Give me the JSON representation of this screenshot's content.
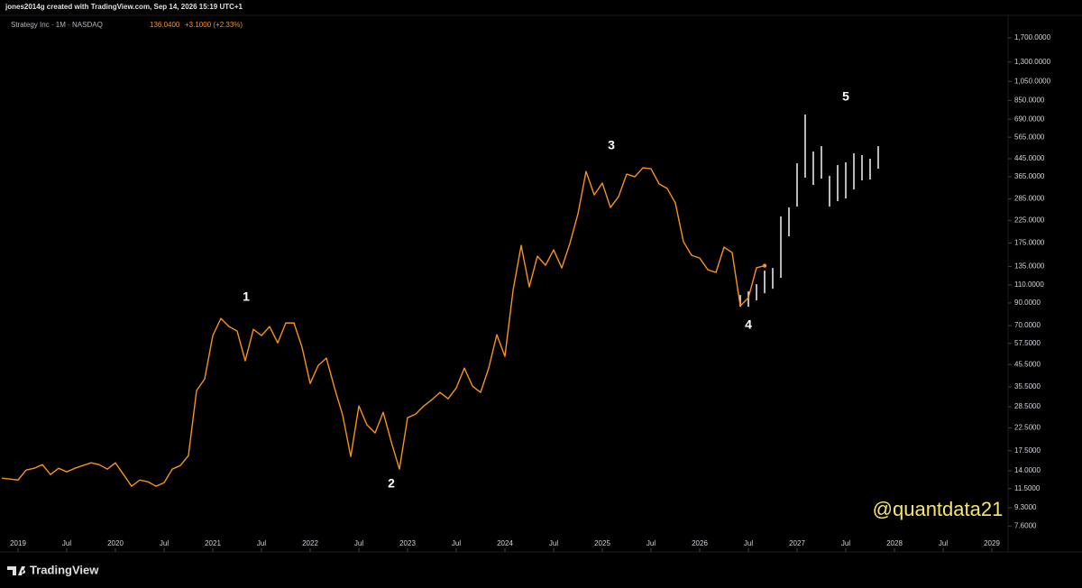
{
  "header": "jones2014g created with TradingView.com, Sep 14, 2026 15:19 UTC+1",
  "chart_data": {
    "type": "line",
    "symbol": "Strategy Inc · 1M · NASDAQ",
    "last_price": {
      "value": 136.04,
      "label": "136.0400"
    },
    "change": "+3.1000 (+2.33%)",
    "color": "#f7931a",
    "log_scale": true,
    "x": [
      "2018-11",
      "2018-12",
      "2019-01",
      "2019-02",
      "2019-03",
      "2019-04",
      "2019-05",
      "2019-06",
      "2019-07",
      "2019-08",
      "2019-09",
      "2019-10",
      "2019-11",
      "2019-12",
      "2020-01",
      "2020-02",
      "2020-03",
      "2020-04",
      "2020-05",
      "2020-06",
      "2020-07",
      "2020-08",
      "2020-09",
      "2020-10",
      "2020-11",
      "2020-12",
      "2021-01",
      "2021-02",
      "2021-03",
      "2021-04",
      "2021-05",
      "2021-06",
      "2021-07",
      "2021-08",
      "2021-09",
      "2021-10",
      "2021-11",
      "2021-12",
      "2022-01",
      "2022-02",
      "2022-03",
      "2022-04",
      "2022-05",
      "2022-06",
      "2022-07",
      "2022-08",
      "2022-09",
      "2022-10",
      "2022-11",
      "2022-12",
      "2023-01",
      "2023-02",
      "2023-03",
      "2023-04",
      "2023-05",
      "2023-06",
      "2023-07",
      "2023-08",
      "2023-09",
      "2023-10",
      "2023-11",
      "2023-12",
      "2024-01",
      "2024-02",
      "2024-03",
      "2024-04",
      "2024-05",
      "2024-06",
      "2024-07",
      "2024-08",
      "2024-09",
      "2024-10",
      "2024-11",
      "2024-12",
      "2025-01",
      "2025-02",
      "2025-03",
      "2025-04",
      "2025-05",
      "2025-06",
      "2025-07",
      "2025-08",
      "2025-09",
      "2025-10",
      "2025-11",
      "2025-12",
      "2026-01",
      "2026-02",
      "2026-03",
      "2026-04",
      "2026-05",
      "2026-06",
      "2026-07",
      "2026-08",
      "2026-09"
    ],
    "values": [
      12.91,
      12.79,
      12.65,
      14.13,
      14.41,
      15.0,
      13.44,
      14.41,
      13.85,
      14.41,
      14.85,
      15.3,
      15.0,
      14.27,
      15.3,
      13.44,
      11.8,
      12.65,
      12.41,
      11.8,
      12.28,
      14.27,
      14.85,
      16.58,
      34.06,
      38.79,
      62.69,
      75.8,
      69.28,
      65.9,
      47.38,
      67.23,
      62.69,
      69.28,
      57.87,
      72.11,
      72.11,
      55.05,
      36.89,
      45.07,
      48.82,
      35.1,
      26.0,
      16.41,
      28.74,
      23.29,
      21.29,
      26.79,
      19.26,
      14.27,
      25.23,
      26.26,
      28.74,
      30.82,
      33.39,
      31.13,
      35.1,
      43.74,
      35.81,
      33.39,
      43.74,
      63.31,
      49.81,
      103.4,
      170.4,
      107.6,
      151.1,
      136.7,
      162.1,
      132.7,
      173.8,
      241.8,
      386.9,
      298.2,
      339.7,
      259.3,
      292.4,
      375.4,
      364.3,
      402.7,
      398.7,
      336.4,
      320.0,
      272.6,
      177.4,
      152.6,
      148.1,
      130.1,
      126.2,
      167.0,
      157.3,
      87.2,
      95.4,
      132.94,
      136.04
    ],
    "projection": {
      "color": "#e6e6e6",
      "x": [
        "2026-06",
        "2026-07",
        "2026-08",
        "2026-09",
        "2026-10",
        "2026-11",
        "2026-12",
        "2027-01",
        "2027-02",
        "2027-03",
        "2027-04",
        "2027-05",
        "2027-06",
        "2027-07",
        "2027-08",
        "2027-09",
        "2027-10",
        "2027-11"
      ],
      "high": [
        98.3,
        102.3,
        110.8,
        128.8,
        132.7,
        234.7,
        259.3,
        423.3,
        726.6,
        482.1,
        511.9,
        368.0,
        415.0,
        427.6,
        472.5,
        463.2,
        445.1,
        511.9
      ],
      "low": [
        86.3,
        86.3,
        92.6,
        100.3,
        105.4,
        118.9,
        188.3,
        262.0,
        360.8,
        333.0,
        357.1,
        262.0,
        278.2,
        286.6,
        316.8,
        350.1,
        353.6,
        398.7
      ]
    },
    "ylim": [
      5.7,
      2160
    ],
    "yticks": [
      {
        "value": 1700,
        "label": "1,700.0000"
      },
      {
        "value": 1300,
        "label": "1,300.0000"
      },
      {
        "value": 1050,
        "label": "1,050.0000"
      },
      {
        "value": 850,
        "label": "850.0000"
      },
      {
        "value": 690,
        "label": "690.0000"
      },
      {
        "value": 565,
        "label": "565.0000"
      },
      {
        "value": 445,
        "label": "445.0000"
      },
      {
        "value": 365,
        "label": "365.0000"
      },
      {
        "value": 285,
        "label": "285.0000"
      },
      {
        "value": 225,
        "label": "225.0000"
      },
      {
        "value": 175,
        "label": "175.0000"
      },
      {
        "value": 135,
        "label": "135.0000"
      },
      {
        "value": 110,
        "label": "110.0000"
      },
      {
        "value": 90,
        "label": "90.0000"
      },
      {
        "value": 70,
        "label": "70.0000"
      },
      {
        "value": 57.5,
        "label": "57.5000"
      },
      {
        "value": 45.5,
        "label": "45.5000"
      },
      {
        "value": 35.5,
        "label": "35.5000"
      },
      {
        "value": 28.5,
        "label": "28.5000"
      },
      {
        "value": 22.5,
        "label": "22.5000"
      },
      {
        "value": 17.5,
        "label": "17.5000"
      },
      {
        "value": 14,
        "label": "14.0000"
      },
      {
        "value": 11.5,
        "label": "11.5000"
      },
      {
        "value": 9.3,
        "label": "9.3000"
      },
      {
        "value": 7.6,
        "label": "7.6000"
      }
    ],
    "xlim": [
      "2018-11",
      "2029-03"
    ],
    "xticks": [
      {
        "value": "2019-01",
        "label": "2019"
      },
      {
        "value": "2019-07",
        "label": "Jul"
      },
      {
        "value": "2020-01",
        "label": "2020"
      },
      {
        "value": "2020-07",
        "label": "Jul"
      },
      {
        "value": "2021-01",
        "label": "2021"
      },
      {
        "value": "2021-07",
        "label": "Jul"
      },
      {
        "value": "2022-01",
        "label": "2022"
      },
      {
        "value": "2022-07",
        "label": "Jul"
      },
      {
        "value": "2023-01",
        "label": "2023"
      },
      {
        "value": "2023-07",
        "label": "Jul"
      },
      {
        "value": "2024-01",
        "label": "2024"
      },
      {
        "value": "2024-07",
        "label": "Jul"
      },
      {
        "value": "2025-01",
        "label": "2025"
      },
      {
        "value": "2025-07",
        "label": "Jul"
      },
      {
        "value": "2026-01",
        "label": "2026"
      },
      {
        "value": "2026-07",
        "label": "Jul"
      },
      {
        "value": "2027-01",
        "label": "2027"
      },
      {
        "value": "2027-07",
        "label": "Jul"
      },
      {
        "value": "2028-01",
        "label": "2028"
      },
      {
        "value": "2028-07",
        "label": "Jul"
      },
      {
        "value": "2029-01",
        "label": "2029"
      }
    ],
    "annotations": [
      "1",
      "2",
      "3",
      "4",
      "5"
    ],
    "watermark": "@quantdata21"
  },
  "footer": {
    "brand": "TradingView"
  }
}
